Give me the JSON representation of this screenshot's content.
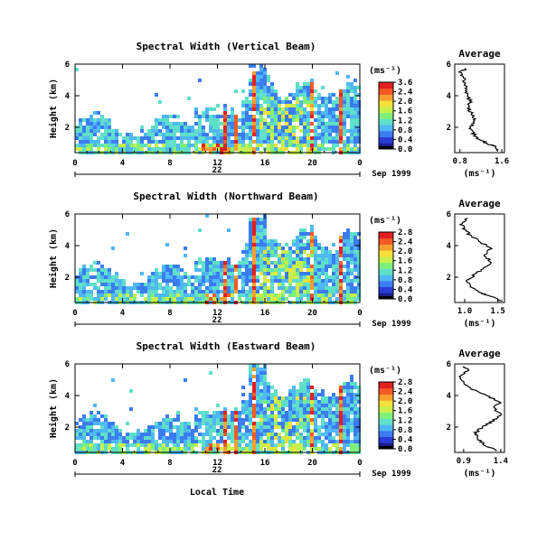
{
  "figure": {
    "x_date_label": "Sep 1999",
    "x_day_label": "22",
    "x_axis_title": "Local Time",
    "y_axis_title": "Height (km)",
    "colorbar_unit": "(ms⁻¹)",
    "avg_axis_unit": "(ms⁻¹)",
    "avg_title": "Average",
    "palette": [
      "#1c1c8c",
      "#2a3bd6",
      "#3b7cf0",
      "#4fb8f5",
      "#5fe0c8",
      "#7ef07a",
      "#c8f04a",
      "#f5e03a",
      "#f7a030",
      "#f55a25",
      "#e32020"
    ]
  },
  "chart_data": [
    {
      "type": "heatmap",
      "title": "Spectral Width (Vertical Beam)",
      "x_ticks": [
        "0",
        "4",
        "8",
        "12",
        "16",
        "20",
        "0"
      ],
      "y_ticks": [
        "6",
        "4",
        "2"
      ],
      "colorbar_ticks": [
        "3.6",
        "2.4",
        "2.0",
        "1.6",
        "1.2",
        "0.8",
        "0.4",
        "0.0"
      ],
      "average_profile": {
        "title": "Average",
        "x_ticks": [
          "0.8",
          "1.6"
        ],
        "xlim": [
          0.7,
          1.65
        ],
        "ylim": [
          0.4,
          6.0
        ],
        "y_ticks": [
          "6",
          "4",
          "2"
        ],
        "points": [
          [
            1.55,
            0.5
          ],
          [
            1.45,
            0.8
          ],
          [
            1.3,
            1.0
          ],
          [
            1.15,
            1.3
          ],
          [
            1.05,
            1.6
          ],
          [
            1.0,
            2.0
          ],
          [
            1.1,
            2.4
          ],
          [
            1.05,
            2.8
          ],
          [
            0.95,
            3.2
          ],
          [
            1.0,
            3.6
          ],
          [
            0.95,
            4.0
          ],
          [
            0.9,
            4.4
          ],
          [
            0.9,
            4.8
          ],
          [
            0.85,
            5.2
          ],
          [
            0.8,
            5.5
          ],
          [
            0.95,
            5.8
          ]
        ]
      }
    },
    {
      "type": "heatmap",
      "title": "Spectral Width (Northward Beam)",
      "x_ticks": [
        "0",
        "4",
        "8",
        "12",
        "16",
        "20",
        "0"
      ],
      "y_ticks": [
        "6",
        "4",
        "2"
      ],
      "colorbar_ticks": [
        "2.8",
        "2.4",
        "2.0",
        "1.6",
        "1.2",
        "0.8",
        "0.4",
        "0.0"
      ],
      "average_profile": {
        "title": "Average",
        "x_ticks": [
          "1.0",
          "1.5"
        ],
        "xlim": [
          0.85,
          1.6
        ],
        "ylim": [
          0.4,
          6.0
        ],
        "y_ticks": [
          "6",
          "4",
          "2"
        ],
        "points": [
          [
            1.55,
            0.5
          ],
          [
            1.4,
            0.8
          ],
          [
            1.25,
            1.0
          ],
          [
            1.1,
            1.4
          ],
          [
            1.05,
            1.8
          ],
          [
            1.15,
            2.2
          ],
          [
            1.3,
            2.6
          ],
          [
            1.4,
            3.0
          ],
          [
            1.3,
            3.4
          ],
          [
            1.4,
            3.8
          ],
          [
            1.25,
            4.2
          ],
          [
            1.1,
            4.6
          ],
          [
            1.0,
            5.0
          ],
          [
            0.95,
            5.4
          ],
          [
            1.05,
            5.8
          ]
        ]
      }
    },
    {
      "type": "heatmap",
      "title": "Spectral Width (Eastward Beam)",
      "x_ticks": [
        "0",
        "4",
        "8",
        "12",
        "16",
        "20",
        "0"
      ],
      "y_ticks": [
        "6",
        "4",
        "2"
      ],
      "colorbar_ticks": [
        "2.8",
        "2.4",
        "2.0",
        "1.6",
        "1.2",
        "0.8",
        "0.4",
        "0.0"
      ],
      "average_profile": {
        "title": "Average",
        "x_ticks": [
          "0.9",
          "1.4"
        ],
        "xlim": [
          0.78,
          1.45
        ],
        "ylim": [
          0.4,
          6.0
        ],
        "y_ticks": [
          "6",
          "4",
          "2"
        ],
        "points": [
          [
            1.35,
            0.5
          ],
          [
            1.2,
            0.8
          ],
          [
            1.1,
            1.2
          ],
          [
            1.05,
            1.6
          ],
          [
            1.15,
            2.0
          ],
          [
            1.3,
            2.4
          ],
          [
            1.4,
            2.8
          ],
          [
            1.3,
            3.2
          ],
          [
            1.4,
            3.6
          ],
          [
            1.2,
            4.0
          ],
          [
            1.0,
            4.4
          ],
          [
            0.9,
            4.8
          ],
          [
            0.85,
            5.2
          ],
          [
            0.95,
            5.6
          ],
          [
            0.9,
            5.9
          ]
        ]
      }
    }
  ]
}
